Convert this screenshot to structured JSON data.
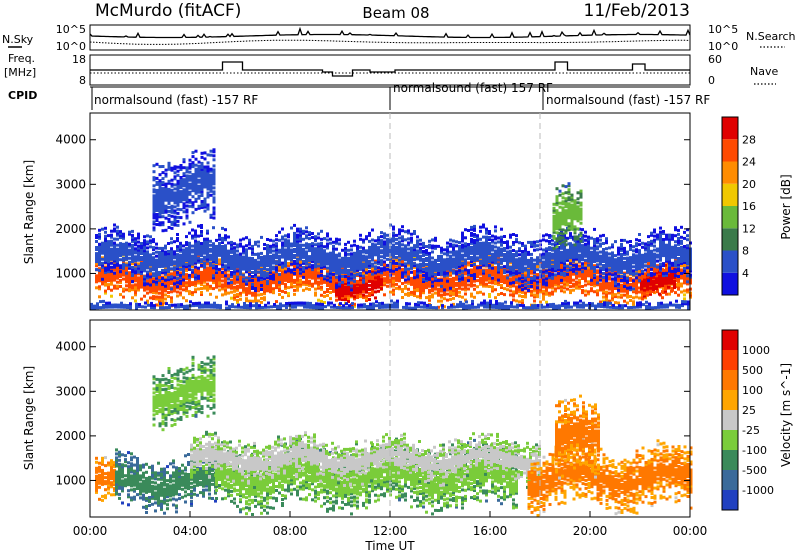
{
  "header": {
    "station": "McMurdo (fitACF)",
    "beam": "Beam 08",
    "date": "11/Feb/2013"
  },
  "left_labels": {
    "nsky": "N.Sky",
    "freq": "Freq.",
    "freq_unit": "[MHz]",
    "cpid": "CPID"
  },
  "right_labels": {
    "nsearch": "N.Search",
    "nave": "Nave"
  },
  "cpid_segments": [
    {
      "label": "normalsound (fast) -157 RF",
      "start_hr": 0
    },
    {
      "label": "normalsound (fast) 157 RF",
      "start_hr": 12
    },
    {
      "label": "normalsound (fast) -157 RF",
      "start_hr": 18
    }
  ],
  "x_axis": {
    "label": "Time UT",
    "ticks": [
      "00:00",
      "04:00",
      "08:00",
      "12:00",
      "16:00",
      "20:00",
      "00:00"
    ],
    "range_hours": [
      0,
      24
    ]
  },
  "noise_panel": {
    "left_ticks": [
      "10^5",
      "10^0"
    ],
    "right_ticks": [
      "10^5",
      "10^0"
    ]
  },
  "freq_panel": {
    "left_ticks": [
      "18",
      "8"
    ],
    "right_ticks": [
      "60",
      "0"
    ]
  },
  "chart_data": [
    {
      "type": "heatmap",
      "title": "",
      "xlabel": "Time UT",
      "ylabel": "Slant Range [km]",
      "xlim": [
        0,
        24
      ],
      "ylim": [
        180,
        4600
      ],
      "yticks": [
        "1000",
        "2000",
        "3000",
        "4000"
      ],
      "colorbar": {
        "label": "Power [dB]",
        "ticks": [
          "4",
          "8",
          "12",
          "16",
          "20",
          "24",
          "28"
        ],
        "colors": [
          "#1010e0",
          "#2a50c8",
          "#3a7a4a",
          "#6aba3a",
          "#f0c800",
          "#ff8c00",
          "#ff4a00",
          "#e00000"
        ]
      },
      "features": [
        {
          "desc": "main band",
          "x0": 0.2,
          "x1": 24,
          "y_center": 900,
          "y_width": 500,
          "level": 6
        },
        {
          "desc": "strong",
          "x0": 9.8,
          "x1": 11.6,
          "y_center": 750,
          "y_width": 350,
          "level": 7
        },
        {
          "desc": "strong",
          "x0": 22,
          "x1": 23.4,
          "y_center": 800,
          "y_width": 400,
          "level": 7
        },
        {
          "desc": "halo",
          "x0": 0.2,
          "x1": 24,
          "y_center": 1400,
          "y_width": 600,
          "level": 1
        },
        {
          "desc": "upper",
          "x0": 2.5,
          "x1": 5,
          "y_center": 2900,
          "y_width": 800,
          "level": 1
        },
        {
          "desc": "upper",
          "x0": 18.5,
          "x1": 19.6,
          "y_center": 2200,
          "y_width": 700,
          "level": 3
        },
        {
          "desc": "near",
          "x0": 0,
          "x1": 24,
          "y_center": 280,
          "y_width": 120,
          "level": 1
        }
      ]
    },
    {
      "type": "heatmap",
      "title": "",
      "xlabel": "Time UT",
      "ylabel": "Slant Range [km]",
      "xlim": [
        0,
        24
      ],
      "ylim": [
        180,
        4600
      ],
      "yticks": [
        "1000",
        "2000",
        "3000",
        "4000"
      ],
      "colorbar": {
        "label": "Velocity [m s^-1]",
        "ticks": [
          "1000",
          "500",
          "100",
          "25",
          "-25",
          "-100",
          "-500",
          "-1000"
        ],
        "colors": [
          "#2040c0",
          "#3a6a9a",
          "#3a8a5a",
          "#7acc3a",
          "#c8c8c8",
          "#ffa500",
          "#ff7800",
          "#ff4000",
          "#e00000"
        ]
      },
      "features": [
        {
          "desc": "westward",
          "x0": 0.2,
          "x1": 1,
          "y_center": 1000,
          "y_width": 500,
          "level": 6
        },
        {
          "desc": "eastward",
          "x0": 1,
          "x1": 5,
          "y_center": 1000,
          "y_width": 600,
          "level": 2
        },
        {
          "desc": "eastward",
          "x0": 5,
          "x1": 17,
          "y_center": 1100,
          "y_width": 700,
          "level": 3
        },
        {
          "desc": "grey",
          "x0": 4,
          "x1": 18,
          "y_center": 1500,
          "y_width": 500,
          "level": 4
        },
        {
          "desc": "westward",
          "x0": 17.5,
          "x1": 24,
          "y_center": 1100,
          "y_width": 700,
          "level": 6
        },
        {
          "desc": "westward",
          "x0": 18.6,
          "x1": 20.3,
          "y_center": 1900,
          "y_width": 900,
          "level": 6
        },
        {
          "desc": "upper",
          "x0": 2.5,
          "x1": 5,
          "y_center": 3000,
          "y_width": 700,
          "level": 3
        }
      ]
    }
  ]
}
